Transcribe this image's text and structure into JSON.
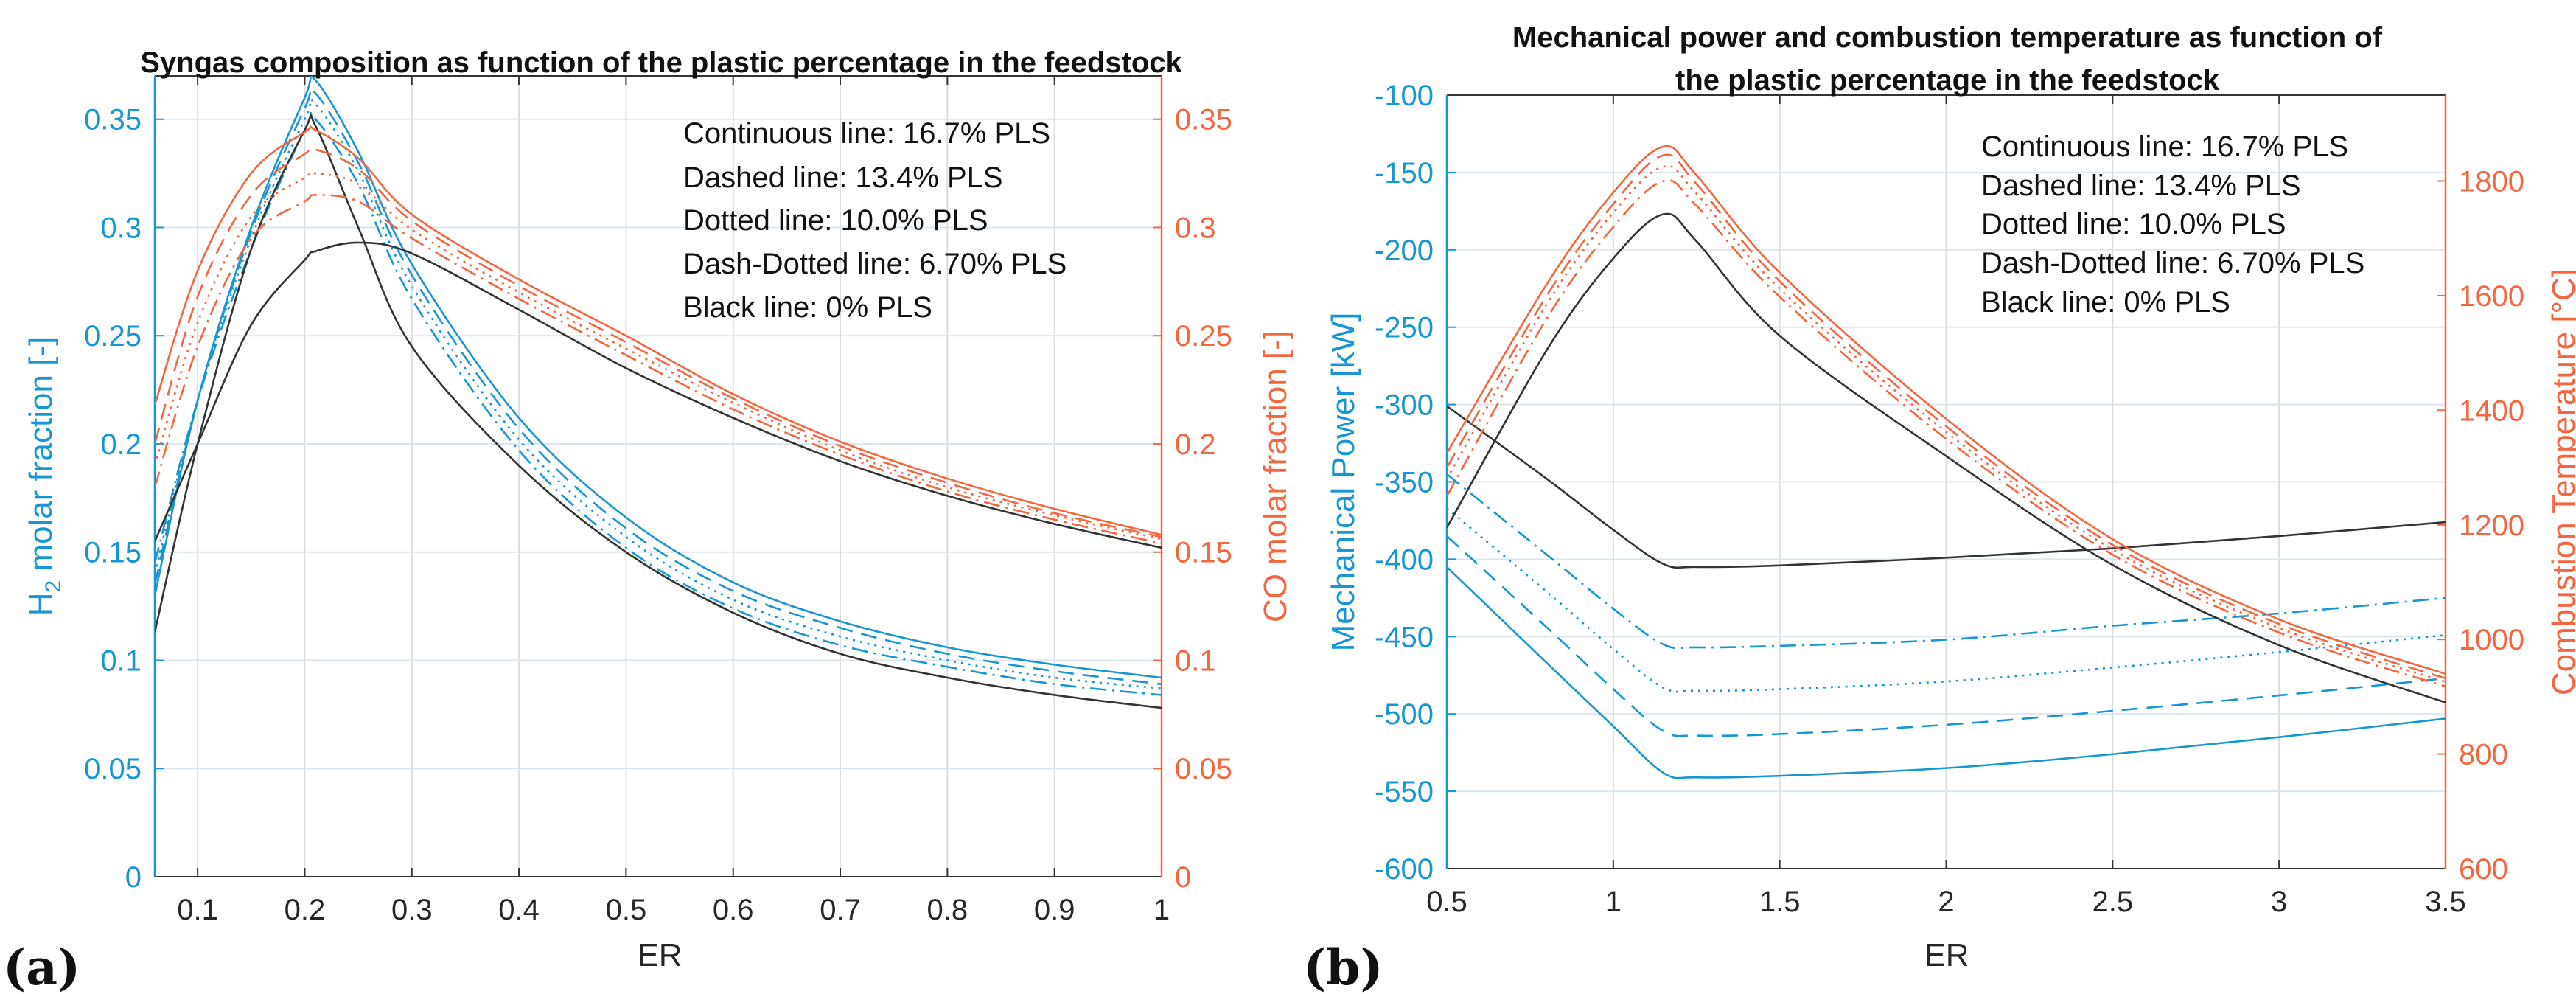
{
  "colors": {
    "blue": "#1896d3",
    "orange": "#f2673f",
    "black": "#333333",
    "grid": "#dbe6ee"
  },
  "chart_data": [
    {
      "type": "line",
      "panel_label": "(a)",
      "title": "Syngas composition as function of the plastic percentage in the feedstock",
      "xlabel": "ER",
      "ylabel_left": {
        "pre": "H",
        "sub": "2",
        "post": " molar fraction [-]"
      },
      "ylabel_right": "CO molar fraction [-]",
      "xlim": [
        0.06,
        1.0
      ],
      "ylim_left": [
        0,
        0.37
      ],
      "ylim_right": [
        0,
        0.37
      ],
      "xticks": [
        "0.1",
        "0.2",
        "0.3",
        "0.4",
        "0.5",
        "0.6",
        "0.7",
        "0.8",
        "0.9",
        "1"
      ],
      "yticks_left": [
        "0",
        "0.05",
        "0.1",
        "0.15",
        "0.2",
        "0.25",
        "0.3",
        "0.35"
      ],
      "yticks_right": [
        "0",
        "0.05",
        "0.1",
        "0.15",
        "0.2",
        "0.25",
        "0.3",
        "0.35"
      ],
      "grid": true,
      "legend": [
        "Continuous line: 16.7% PLS",
        "Dashed line: 13.4% PLS",
        "Dotted line: 10.0% PLS",
        "Dash-Dotted line: 6.70% PLS",
        "Black line: 0% PLS"
      ],
      "legend_placement": "top-right",
      "x": [
        0.06,
        0.1,
        0.15,
        0.2,
        0.21,
        0.25,
        0.3,
        0.4,
        0.5,
        0.6,
        0.7,
        0.8,
        0.9,
        1.0
      ],
      "series": [
        {
          "name": "H2 16.7% PLS",
          "axis": "left",
          "color": "blue",
          "style": "solid",
          "values": [
            0.13,
            0.22,
            0.3,
            0.36,
            0.368,
            0.335,
            0.283,
            0.212,
            0.166,
            0.136,
            0.118,
            0.106,
            0.098,
            0.092
          ]
        },
        {
          "name": "H2 13.4% PLS",
          "axis": "left",
          "color": "blue",
          "style": "dashed",
          "values": [
            0.135,
            0.22,
            0.298,
            0.355,
            0.362,
            0.33,
            0.278,
            0.207,
            0.161,
            0.132,
            0.115,
            0.103,
            0.095,
            0.089
          ]
        },
        {
          "name": "H2 10.0% PLS",
          "axis": "left",
          "color": "blue",
          "style": "dotted",
          "values": [
            0.14,
            0.22,
            0.295,
            0.35,
            0.357,
            0.326,
            0.273,
            0.202,
            0.157,
            0.128,
            0.111,
            0.1,
            0.092,
            0.087
          ]
        },
        {
          "name": "H2 6.70% PLS",
          "axis": "left",
          "color": "blue",
          "style": "dashdot",
          "values": [
            0.145,
            0.22,
            0.29,
            0.345,
            0.35,
            0.32,
            0.267,
            0.197,
            0.152,
            0.124,
            0.107,
            0.097,
            0.089,
            0.084
          ]
        },
        {
          "name": "H2 0% PLS",
          "axis": "left",
          "color": "black",
          "style": "solid",
          "values": [
            0.113,
            0.2,
            0.29,
            0.345,
            0.347,
            0.3,
            0.245,
            0.19,
            0.15,
            0.122,
            0.103,
            0.092,
            0.084,
            0.078
          ]
        },
        {
          "name": "CO 16.7% PLS",
          "axis": "right",
          "color": "orange",
          "style": "solid",
          "values": [
            0.218,
            0.28,
            0.325,
            0.344,
            0.345,
            0.332,
            0.306,
            0.276,
            0.25,
            0.223,
            0.201,
            0.184,
            0.17,
            0.158
          ]
        },
        {
          "name": "CO 13.4% PLS",
          "axis": "right",
          "color": "orange",
          "style": "dashed",
          "values": [
            0.2,
            0.268,
            0.315,
            0.334,
            0.336,
            0.327,
            0.303,
            0.273,
            0.247,
            0.221,
            0.199,
            0.182,
            0.168,
            0.157
          ]
        },
        {
          "name": "CO 10.0% PLS",
          "axis": "right",
          "color": "orange",
          "style": "dotted",
          "values": [
            0.19,
            0.256,
            0.305,
            0.323,
            0.325,
            0.32,
            0.299,
            0.27,
            0.244,
            0.219,
            0.197,
            0.18,
            0.167,
            0.156
          ]
        },
        {
          "name": "CO 6.70% PLS",
          "axis": "right",
          "color": "orange",
          "style": "dashdot",
          "values": [
            0.18,
            0.245,
            0.295,
            0.312,
            0.315,
            0.312,
            0.295,
            0.267,
            0.241,
            0.216,
            0.195,
            0.178,
            0.165,
            0.154
          ]
        },
        {
          "name": "CO 0% PLS",
          "axis": "right",
          "color": "black",
          "style": "solid",
          "values": [
            0.155,
            0.2,
            0.255,
            0.285,
            0.289,
            0.293,
            0.288,
            0.262,
            0.235,
            0.212,
            0.192,
            0.176,
            0.163,
            0.152
          ]
        }
      ]
    },
    {
      "type": "line",
      "panel_label": "(b)",
      "title": "Mechanical power and combustion temperature as function of",
      "title_line2": "the plastic percentage in the feedstock",
      "xlabel": "ER",
      "ylabel_left": {
        "pre": "Mechanical Power [kW]",
        "sub": "",
        "post": ""
      },
      "ylabel_right": "Combustion Temperature [°C]",
      "xlim": [
        0.5,
        3.5
      ],
      "ylim_left": [
        -600,
        -100
      ],
      "ylim_right": [
        600,
        1950
      ],
      "xticks": [
        "0.5",
        "1",
        "1.5",
        "2",
        "2.5",
        "3",
        "3.5"
      ],
      "yticks_left": [
        "-600",
        "-550",
        "-500",
        "-450",
        "-400",
        "-350",
        "-300",
        "-250",
        "-200",
        "-150",
        "-100"
      ],
      "yticks_right": [
        "600",
        "800",
        "1000",
        "1200",
        "1400",
        "1600",
        "1800"
      ],
      "grid": true,
      "legend": [
        "Continuous line: 16.7% PLS",
        "Dashed line: 13.4% PLS",
        "Dotted line: 10.0% PLS",
        "Dash-Dotted line: 6.70% PLS",
        "Black line: 0% PLS"
      ],
      "legend_placement": "top-right",
      "x": [
        0.5,
        0.8,
        1.0,
        1.15,
        1.25,
        1.5,
        2.0,
        2.5,
        3.0,
        3.5
      ],
      "series": [
        {
          "name": "Power 16.7% PLS",
          "axis": "left",
          "color": "blue",
          "style": "solid",
          "values": [
            -405,
            -467,
            -508,
            -538,
            -541,
            -540,
            -535,
            -526,
            -515,
            -503
          ]
        },
        {
          "name": "Power 13.4% PLS",
          "axis": "left",
          "color": "blue",
          "style": "dashed",
          "values": [
            -385,
            -444,
            -484,
            -511,
            -514,
            -513,
            -507,
            -498,
            -488,
            -477
          ]
        },
        {
          "name": "Power 10.0% PLS",
          "axis": "left",
          "color": "blue",
          "style": "dotted",
          "values": [
            -367,
            -421,
            -458,
            -483,
            -485,
            -484,
            -479,
            -470,
            -460,
            -449
          ]
        },
        {
          "name": "Power 6.70% PLS",
          "axis": "left",
          "color": "blue",
          "style": "dashdot",
          "values": [
            -345,
            -397,
            -432,
            -455,
            -457,
            -456,
            -452,
            -443,
            -435,
            -425
          ]
        },
        {
          "name": "Power 0% PLS",
          "axis": "left",
          "color": "black",
          "style": "solid",
          "values": [
            -301,
            -348,
            -381,
            -403,
            -405,
            -404,
            -399,
            -393,
            -385,
            -376
          ]
        },
        {
          "name": "Temperature 16.7% PLS",
          "axis": "right",
          "color": "orange",
          "style": "solid",
          "values": [
            1325,
            1620,
            1780,
            1860,
            1810,
            1640,
            1385,
            1175,
            1035,
            940
          ]
        },
        {
          "name": "Temperature 13.4% PLS",
          "axis": "right",
          "color": "orange",
          "style": "dashed",
          "values": [
            1300,
            1600,
            1760,
            1845,
            1795,
            1625,
            1372,
            1165,
            1027,
            932
          ]
        },
        {
          "name": "Temperature 10.0% PLS",
          "axis": "right",
          "color": "orange",
          "style": "dotted",
          "values": [
            1280,
            1585,
            1745,
            1825,
            1778,
            1612,
            1362,
            1157,
            1020,
            926
          ]
        },
        {
          "name": "Temperature 6.70% PLS",
          "axis": "right",
          "color": "orange",
          "style": "dashdot",
          "values": [
            1250,
            1560,
            1720,
            1800,
            1757,
            1598,
            1350,
            1148,
            1012,
            918
          ]
        },
        {
          "name": "Temperature 0% PLS",
          "axis": "right",
          "color": "black",
          "style": "solid",
          "values": [
            1195,
            1505,
            1665,
            1742,
            1695,
            1530,
            1320,
            1130,
            990,
            890
          ]
        }
      ]
    }
  ]
}
